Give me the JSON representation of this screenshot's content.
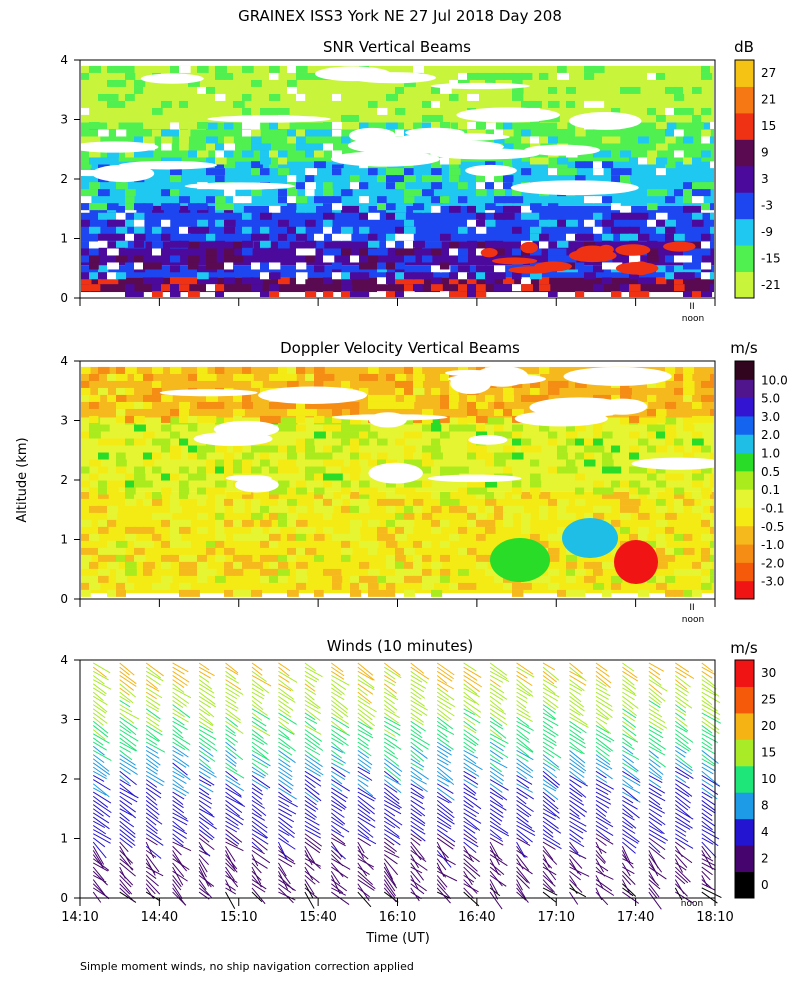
{
  "figure_title": "GRAINEX ISS3 York NE  27 Jul 2018 Day 208",
  "shared_ylabel": "Altitude (km)",
  "footnote": "Simple moment winds, no ship navigation correction applied",
  "noon_label": "noon",
  "noon_ticks": "II",
  "colors": {
    "snr": [
      "#c8f53c",
      "#50f050",
      "#1ec8f0",
      "#1e46f0",
      "#4b0a9b",
      "#5a0a50",
      "#f03214",
      "#f57814",
      "#f5c314"
    ],
    "dop": [
      "#f01414",
      "#f55a0a",
      "#f58c14",
      "#f5b91e",
      "#f5eb14",
      "#e6f532",
      "#aaeb1e",
      "#28dc28",
      "#1ebee6",
      "#1464f0",
      "#3214d2",
      "#50148c",
      "#32051e"
    ],
    "wind": [
      "#000000",
      "#46056e",
      "#2314d2",
      "#1e9be6",
      "#1ee678",
      "#aaeb28",
      "#f5b414",
      "#f55a0a",
      "#f01414"
    ]
  },
  "chart_data": [
    {
      "type": "heatmap",
      "title": "SNR Vertical Beams",
      "ylabel": "Altitude (km)",
      "ylim": [
        0,
        4
      ],
      "yticks": [
        "0",
        "1",
        "2",
        "3",
        "4"
      ],
      "xlim": [
        "14:10",
        "18:10"
      ],
      "colorbar_unit": "dB",
      "colorbar_labels": [
        "-21",
        "-15",
        "-9",
        "-3",
        "3",
        "9",
        "15",
        "21",
        "27"
      ],
      "layers": [
        {
          "alt_bottom": 0.1,
          "alt_top": 0.35,
          "level": "9"
        },
        {
          "alt_bottom": 0.35,
          "alt_top": 0.55,
          "level": "-3"
        },
        {
          "alt_bottom": 0.55,
          "alt_top": 0.95,
          "level": "3"
        },
        {
          "alt_bottom": 0.95,
          "alt_top": 1.55,
          "level": "-3"
        },
        {
          "alt_bottom": 1.55,
          "alt_top": 2.3,
          "level": "-9"
        },
        {
          "alt_bottom": 2.3,
          "alt_top": 2.95,
          "level": "-15"
        },
        {
          "alt_bottom": 2.95,
          "alt_top": 3.9,
          "level": "-21"
        }
      ]
    },
    {
      "type": "heatmap",
      "title": "Doppler Velocity Vertical Beams",
      "ylabel": "Altitude (km)",
      "ylim": [
        0,
        4
      ],
      "yticks": [
        "0",
        "1",
        "2",
        "3",
        "4"
      ],
      "xlim": [
        "14:10",
        "18:10"
      ],
      "colorbar_unit": "m/s",
      "colorbar_labels": [
        "-3.0",
        "-2.0",
        "-1.0",
        "-0.5",
        "-0.1",
        "0.1",
        "0.5",
        "1.0",
        "2.0",
        "3.0",
        "5.0",
        "10.0"
      ],
      "layers": [
        {
          "alt_bottom": 0.1,
          "alt_top": 1.8,
          "level": "-0.1"
        },
        {
          "alt_bottom": 1.8,
          "alt_top": 3.05,
          "level": "0.1"
        },
        {
          "alt_bottom": 3.05,
          "alt_top": 3.9,
          "level": "-0.5"
        }
      ]
    },
    {
      "type": "scatter",
      "title": "Winds (10 minutes)",
      "ylabel": "Altitude (km)",
      "xlabel": "Time (UT)",
      "ylim": [
        0,
        4
      ],
      "yticks": [
        "0",
        "1",
        "2",
        "3",
        "4"
      ],
      "x_ticklabels": [
        "14:10",
        "14:40",
        "15:10",
        "15:40",
        "16:10",
        "16:40",
        "17:10",
        "17:40",
        "18:10"
      ],
      "x_minutes": [
        0,
        240
      ],
      "colorbar_unit": "m/s",
      "colorbar_labels": [
        "0",
        "2",
        "4",
        "8",
        "10",
        "15",
        "20",
        "25",
        "30"
      ],
      "profile_times_min": [
        5,
        15,
        25,
        35,
        45,
        55,
        65,
        75,
        85,
        95,
        105,
        115,
        125,
        135,
        145,
        155,
        165,
        175,
        185,
        195,
        205,
        215,
        225,
        235
      ],
      "speed_profile": [
        {
          "alt": 0.1,
          "speed": 2
        },
        {
          "alt": 1.0,
          "speed": 4
        },
        {
          "alt": 2.0,
          "speed": 8
        },
        {
          "alt": 2.5,
          "speed": 10
        },
        {
          "alt": 3.0,
          "speed": 15
        },
        {
          "alt": 3.5,
          "speed": 18
        },
        {
          "alt": 4.0,
          "speed": 22
        }
      ]
    }
  ]
}
